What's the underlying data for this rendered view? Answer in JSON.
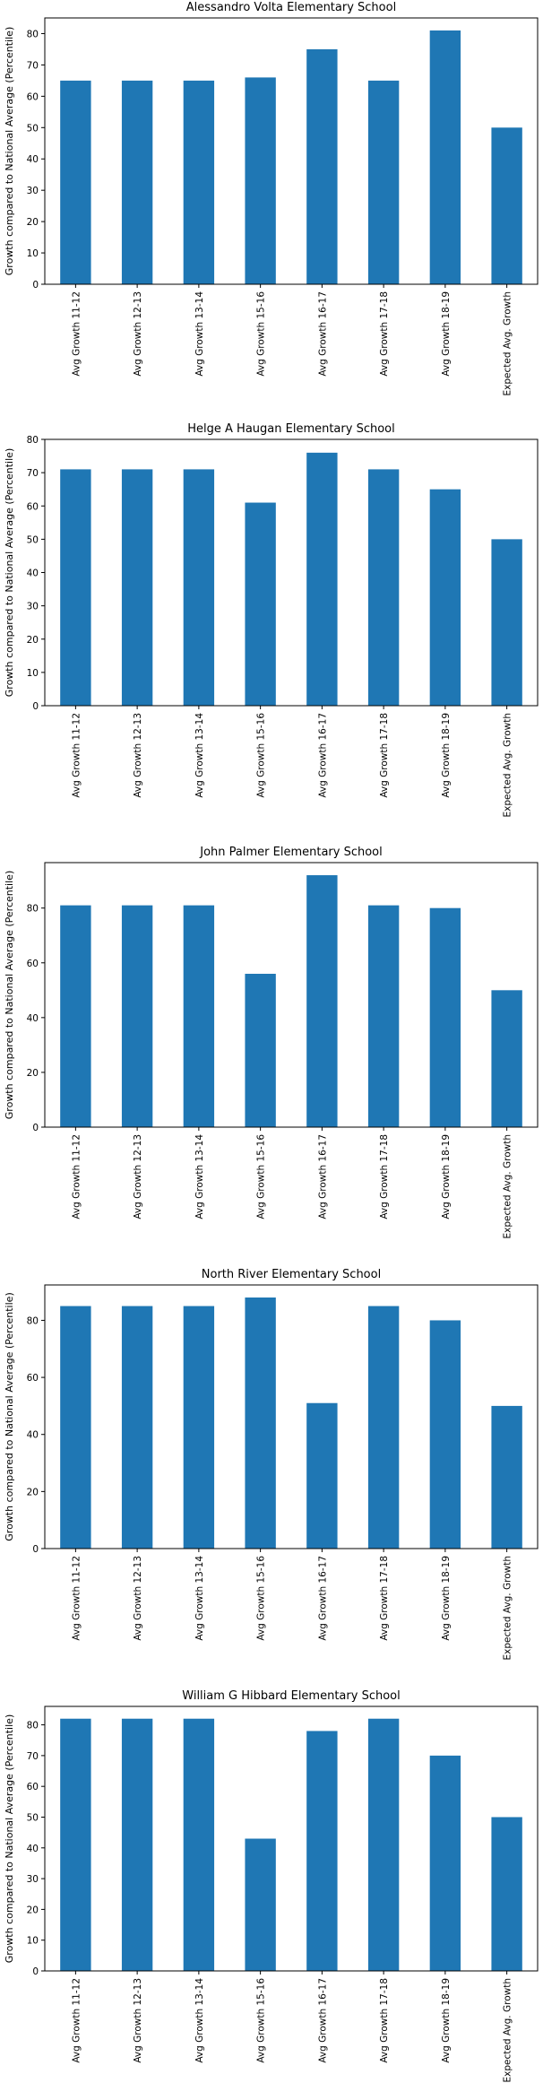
{
  "chart_data": [
    {
      "type": "bar",
      "title": "Alessandro Volta Elementary School",
      "ylabel": "Growth compared to National Average (Percentile)",
      "xlabel": "",
      "categories": [
        "Avg Growth 11-12",
        "Avg Growth 12-13",
        "Avg Growth 13-14",
        "Avg Growth 15-16",
        "Avg Growth 16-17",
        "Avg Growth 17-18",
        "Avg Growth 18-19",
        "Expected Avg. Growth"
      ],
      "values": [
        65,
        65,
        65,
        66,
        75,
        65,
        81,
        50
      ],
      "ylim": [
        0,
        85
      ],
      "yticks": [
        0,
        10,
        20,
        30,
        40,
        50,
        60,
        70,
        80
      ],
      "color": "#1f77b4",
      "grid": false
    },
    {
      "type": "bar",
      "title": "Helge A Haugan Elementary School",
      "ylabel": "Growth compared to National Average (Percentile)",
      "xlabel": "",
      "categories": [
        "Avg Growth 11-12",
        "Avg Growth 12-13",
        "Avg Growth 13-14",
        "Avg Growth 15-16",
        "Avg Growth 16-17",
        "Avg Growth 17-18",
        "Avg Growth 18-19",
        "Expected Avg. Growth"
      ],
      "values": [
        71,
        71,
        71,
        61,
        76,
        71,
        65,
        50
      ],
      "ylim": [
        0,
        80
      ],
      "yticks": [
        0,
        10,
        20,
        30,
        40,
        50,
        60,
        70,
        80
      ],
      "color": "#1f77b4",
      "grid": false
    },
    {
      "type": "bar",
      "title": "John Palmer Elementary School",
      "ylabel": "Growth compared to National Average (Percentile)",
      "xlabel": "",
      "categories": [
        "Avg Growth 11-12",
        "Avg Growth 12-13",
        "Avg Growth 13-14",
        "Avg Growth 15-16",
        "Avg Growth 16-17",
        "Avg Growth 17-18",
        "Avg Growth 18-19",
        "Expected Avg. Growth"
      ],
      "values": [
        81,
        81,
        81,
        56,
        92,
        81,
        80,
        50
      ],
      "ylim": [
        0,
        96.6
      ],
      "yticks": [
        0,
        20,
        40,
        60,
        80
      ],
      "color": "#1f77b4",
      "grid": false
    },
    {
      "type": "bar",
      "title": "North River Elementary School",
      "ylabel": "Growth compared to National Average (Percentile)",
      "xlabel": "",
      "categories": [
        "Avg Growth 11-12",
        "Avg Growth 12-13",
        "Avg Growth 13-14",
        "Avg Growth 15-16",
        "Avg Growth 16-17",
        "Avg Growth 17-18",
        "Avg Growth 18-19",
        "Expected Avg. Growth"
      ],
      "values": [
        85,
        85,
        85,
        88,
        51,
        85,
        80,
        50
      ],
      "ylim": [
        0,
        92.4
      ],
      "yticks": [
        0,
        20,
        40,
        60,
        80
      ],
      "color": "#1f77b4",
      "grid": false
    },
    {
      "type": "bar",
      "title": "William G Hibbard Elementary School",
      "ylabel": "Growth compared to National Average (Percentile)",
      "xlabel": "",
      "categories": [
        "Avg Growth 11-12",
        "Avg Growth 12-13",
        "Avg Growth 13-14",
        "Avg Growth 15-16",
        "Avg Growth 16-17",
        "Avg Growth 17-18",
        "Avg Growth 18-19",
        "Expected Avg. Growth"
      ],
      "values": [
        82,
        82,
        82,
        43,
        78,
        82,
        70,
        50
      ],
      "ylim": [
        0,
        86
      ],
      "yticks": [
        0,
        10,
        20,
        30,
        40,
        50,
        60,
        70,
        80
      ],
      "color": "#1f77b4",
      "grid": false
    }
  ]
}
